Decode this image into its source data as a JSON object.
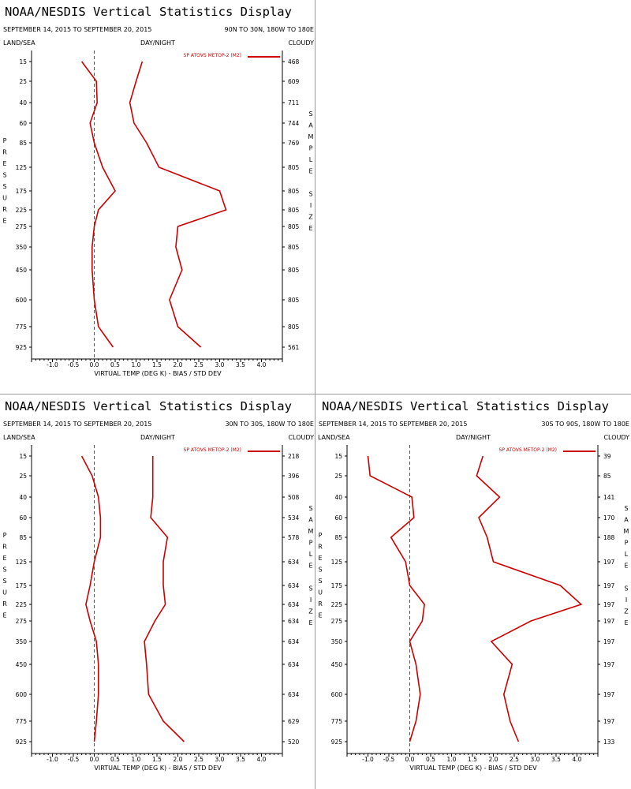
{
  "panels": [
    {
      "id": "tl",
      "title": "NOAA/NESDIS Vertical Statistics Display",
      "date_range": "SEPTEMBER 14, 2015 TO SEPTEMBER 20, 2015",
      "region": "90N TO 30N, 180W TO 180E",
      "left_label": "LAND/SEA",
      "center_label": "DAY/NIGHT",
      "right_label": "CLOUDY",
      "legend": "SP ATOVS METOP-2 (M2)",
      "xlabel": "VIRTUAL TEMP (DEG K) - BIAS / STD DEV",
      "ylabel": "PRESSURE",
      "y2label": "SAMPLE SIZE"
    },
    {
      "id": "bl",
      "title": "NOAA/NESDIS Vertical Statistics Display",
      "date_range": "SEPTEMBER 14, 2015 TO SEPTEMBER 20, 2015",
      "region": "30N TO 30S, 180W TO 180E",
      "left_label": "LAND/SEA",
      "center_label": "DAY/NIGHT",
      "right_label": "CLOUDY",
      "legend": "SP ATOVS METOP-2 (M2)",
      "xlabel": "VIRTUAL TEMP (DEG K) - BIAS / STD DEV",
      "ylabel": "PRESSURE",
      "y2label": "SAMPLE SIZE"
    },
    {
      "id": "br",
      "title": "NOAA/NESDIS Vertical Statistics Display",
      "date_range": "SEPTEMBER 14, 2015 TO SEPTEMBER 20, 2015",
      "region": "30S TO 90S, 180W TO 180E",
      "left_label": "LAND/SEA",
      "center_label": "DAY/NIGHT",
      "right_label": "CLOUDY",
      "legend": "SP ATOVS METOP-2 (M2)",
      "xlabel": "VIRTUAL TEMP (DEG K) - BIAS / STD DEV",
      "ylabel": "PRESSURE",
      "y2label": "SAMPLE SIZE"
    }
  ],
  "colors": {
    "series": "#cc0000",
    "zero_line": "#555555"
  },
  "chart_data": [
    {
      "type": "line",
      "title": "NOAA/NESDIS Vertical Statistics Display",
      "region": "90N TO 30N, 180W TO 180E",
      "xlabel": "VIRTUAL TEMP (DEG K) - BIAS / STD DEV",
      "xlim": [
        -1.5,
        4.5
      ],
      "x_ticks": [
        "-1.0",
        "-0.5",
        "0.0",
        "0.5",
        "1.0",
        "1.5",
        "2.0",
        "2.5",
        "3.0",
        "3.5",
        "4.0"
      ],
      "x_tick_values": [
        -1.0,
        -0.5,
        0.0,
        0.5,
        1.0,
        1.5,
        2.0,
        2.5,
        3.0,
        3.5,
        4.0
      ],
      "pressure_levels": [
        "15",
        "25",
        "40",
        "60",
        "85",
        "125",
        "175",
        "225",
        "275",
        "350",
        "450",
        "600",
        "775",
        "925"
      ],
      "sample_size": [
        "468",
        "609",
        "711",
        "744",
        "769",
        "805",
        "805",
        "805",
        "805",
        "805",
        "805",
        "805",
        "805",
        "561"
      ],
      "legend_position": "top-right",
      "series": [
        {
          "name": "SP ATOVS METOP-2 (M2)",
          "stat": "bias",
          "values": [
            -0.3,
            0.05,
            0.07,
            -0.1,
            0.0,
            0.2,
            0.5,
            0.1,
            0.0,
            -0.05,
            -0.05,
            0.0,
            0.1,
            0.45
          ]
        },
        {
          "name": "SP ATOVS METOP-2 (M2)",
          "stat": "stddev",
          "values": [
            1.15,
            1.0,
            0.85,
            0.95,
            1.25,
            1.55,
            3.0,
            3.15,
            2.0,
            1.95,
            2.1,
            1.8,
            2.0,
            2.55
          ]
        }
      ]
    },
    {
      "type": "line",
      "title": "NOAA/NESDIS Vertical Statistics Display",
      "region": "30N TO 30S, 180W TO 180E",
      "xlabel": "VIRTUAL TEMP (DEG K) - BIAS / STD DEV",
      "xlim": [
        -1.5,
        4.5
      ],
      "x_ticks": [
        "-1.0",
        "-0.5",
        "0.0",
        "0.5",
        "1.0",
        "1.5",
        "2.0",
        "2.5",
        "3.0",
        "3.5",
        "4.0"
      ],
      "x_tick_values": [
        -1.0,
        -0.5,
        0.0,
        0.5,
        1.0,
        1.5,
        2.0,
        2.5,
        3.0,
        3.5,
        4.0
      ],
      "pressure_levels": [
        "15",
        "25",
        "40",
        "60",
        "85",
        "125",
        "175",
        "225",
        "275",
        "350",
        "450",
        "600",
        "775",
        "925"
      ],
      "sample_size": [
        "218",
        "396",
        "508",
        "534",
        "578",
        "634",
        "634",
        "634",
        "634",
        "634",
        "634",
        "634",
        "629",
        "520"
      ],
      "legend_position": "top-right",
      "series": [
        {
          "name": "SP ATOVS METOP-2 (M2)",
          "stat": "bias",
          "values": [
            -0.3,
            -0.05,
            0.1,
            0.15,
            0.15,
            0.0,
            -0.1,
            -0.2,
            -0.1,
            0.05,
            0.1,
            0.1,
            0.05,
            0.0
          ]
        },
        {
          "name": "SP ATOVS METOP-2 (M2)",
          "stat": "stddev",
          "values": [
            1.4,
            1.4,
            1.4,
            1.35,
            1.75,
            1.65,
            1.65,
            1.7,
            1.45,
            1.2,
            1.25,
            1.3,
            1.65,
            2.15
          ]
        }
      ]
    },
    {
      "type": "line",
      "title": "NOAA/NESDIS Vertical Statistics Display",
      "region": "30S TO 90S, 180W TO 180E",
      "xlabel": "VIRTUAL TEMP (DEG K) - BIAS / STD DEV",
      "xlim": [
        -1.5,
        4.5
      ],
      "x_ticks": [
        "-1.0",
        "-0.5",
        "0.0",
        "0.5",
        "1.0",
        "1.5",
        "2.0",
        "2.5",
        "3.0",
        "3.5",
        "4.0"
      ],
      "x_tick_values": [
        -1.0,
        -0.5,
        0.0,
        0.5,
        1.0,
        1.5,
        2.0,
        2.5,
        3.0,
        3.5,
        4.0
      ],
      "pressure_levels": [
        "15",
        "25",
        "40",
        "60",
        "85",
        "125",
        "175",
        "225",
        "275",
        "350",
        "450",
        "600",
        "775",
        "925"
      ],
      "sample_size": [
        "39",
        "85",
        "141",
        "170",
        "188",
        "197",
        "197",
        "197",
        "197",
        "197",
        "197",
        "197",
        "197",
        "133"
      ],
      "legend_position": "top-right",
      "series": [
        {
          "name": "SP ATOVS METOP-2 (M2)",
          "stat": "bias",
          "values": [
            -1.0,
            -0.95,
            0.05,
            0.1,
            -0.45,
            -0.1,
            0.0,
            0.35,
            0.3,
            0.0,
            0.15,
            0.25,
            0.15,
            0.0
          ]
        },
        {
          "name": "SP ATOVS METOP-2 (M2)",
          "stat": "stddev",
          "values": [
            1.75,
            1.6,
            2.15,
            1.65,
            1.85,
            2.0,
            3.6,
            4.1,
            2.9,
            1.95,
            2.45,
            2.25,
            2.4,
            2.6
          ]
        }
      ]
    }
  ]
}
